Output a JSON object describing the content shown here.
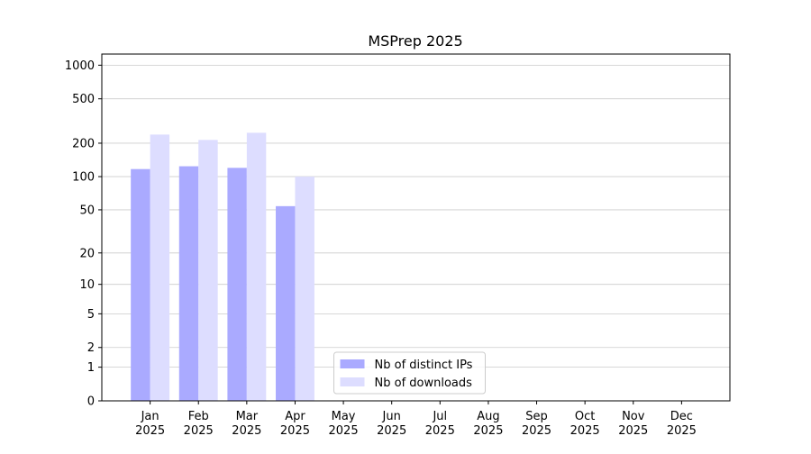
{
  "chart_data": {
    "type": "bar",
    "title": "MSPrep 2025",
    "categories": [
      "Jan\n2025",
      "Feb\n2025",
      "Mar\n2025",
      "Apr\n2025",
      "May\n2025",
      "Jun\n2025",
      "Jul\n2025",
      "Aug\n2025",
      "Sep\n2025",
      "Oct\n2025",
      "Nov\n2025",
      "Dec\n2025"
    ],
    "series": [
      {
        "name": "Nb of distinct IPs",
        "color": "#aaaaff",
        "values": [
          117,
          124,
          120,
          54,
          null,
          null,
          null,
          null,
          null,
          null,
          null,
          null
        ]
      },
      {
        "name": "Nb of downloads",
        "color": "#ddddff",
        "values": [
          239,
          214,
          248,
          100,
          null,
          null,
          null,
          null,
          null,
          null,
          null,
          null
        ]
      }
    ],
    "yscale": "log1p",
    "ylim": [
      0,
      1258
    ],
    "yticks": [
      0,
      1,
      2,
      5,
      10,
      20,
      50,
      100,
      200,
      500,
      1000
    ],
    "grid": true,
    "legend": "lower center"
  }
}
